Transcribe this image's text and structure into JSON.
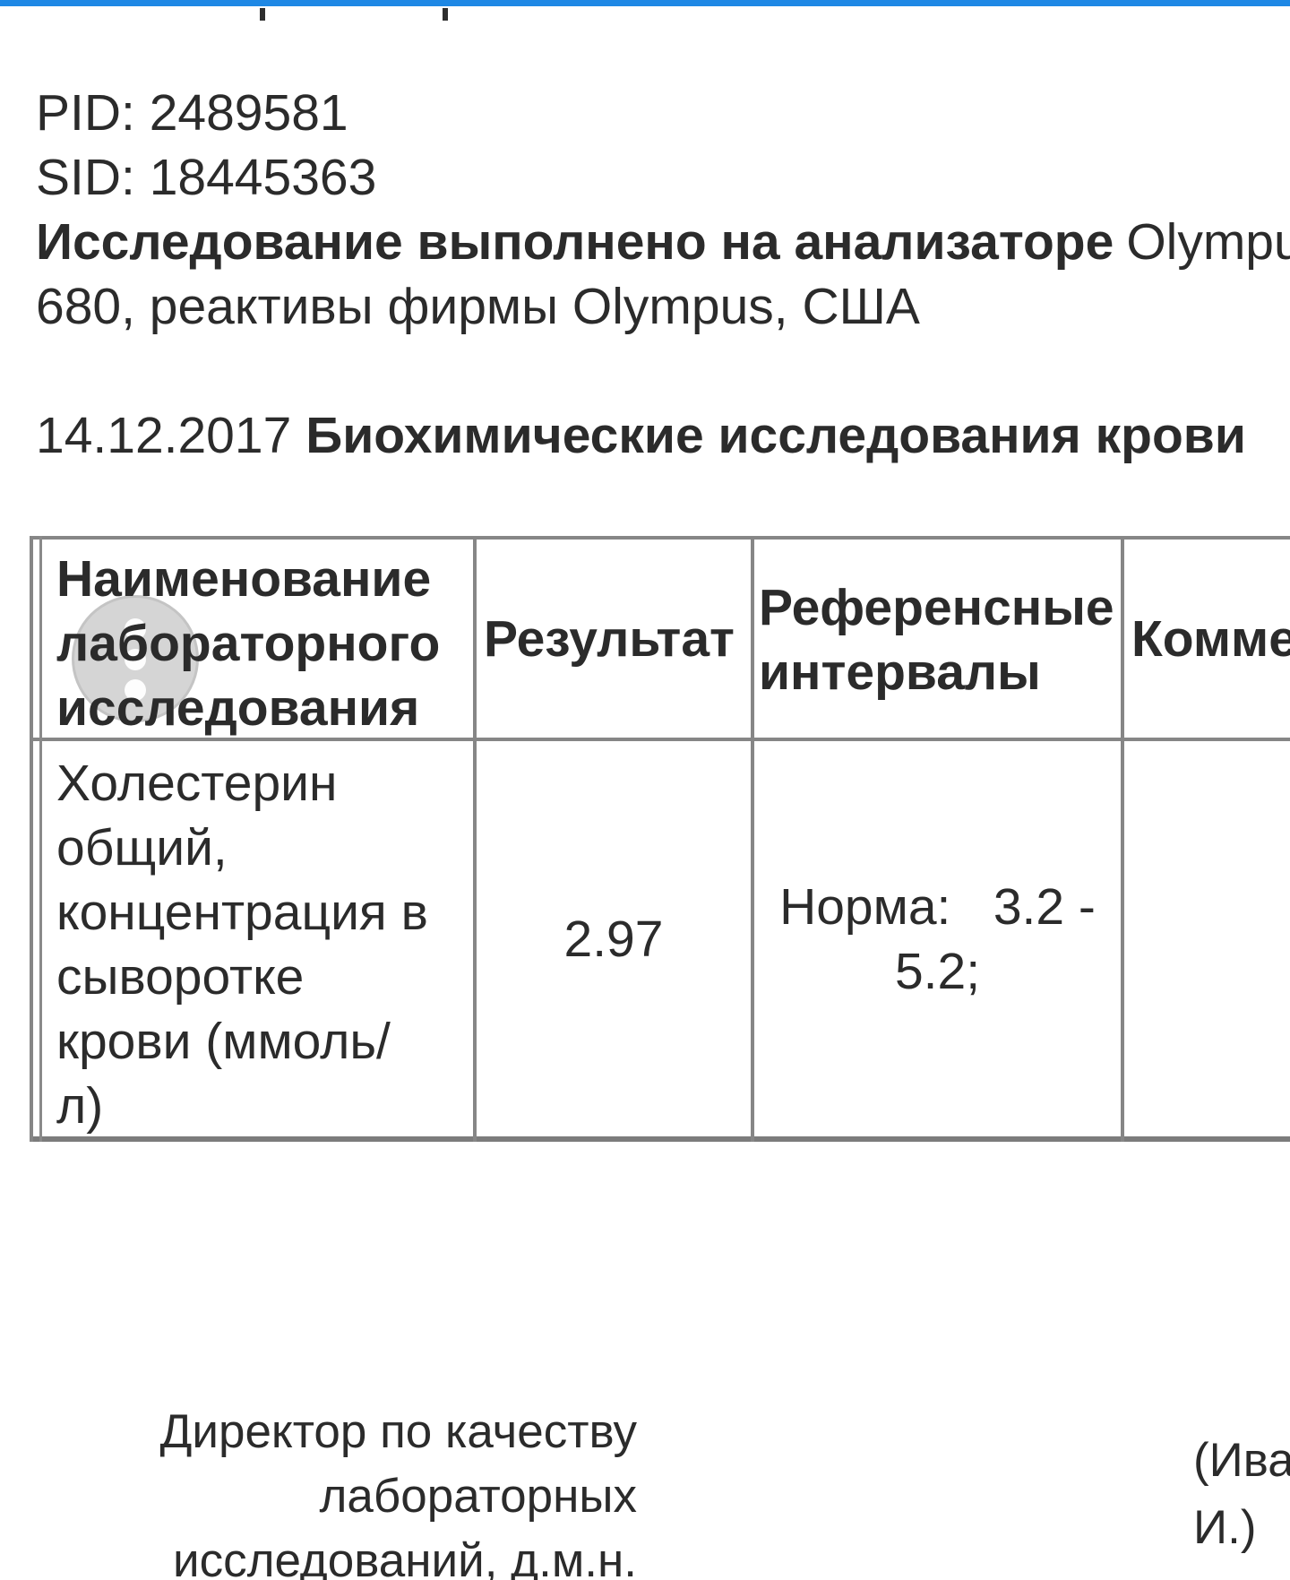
{
  "status_bar": {
    "color": "#1e88e5"
  },
  "page": {
    "pid_line": "PID: 2489581",
    "sid_line": "SID: 18445363",
    "analyzer_label": "Исследование выполнено на анализаторе",
    "analyzer_value": "Olympus",
    "analyzer_line2": "680, реактивы фирмы Olympus, США",
    "report_date": "14.12.2017",
    "report_title": "Биохимические исследования крови"
  },
  "table": {
    "header": {
      "name_lines": [
        "Наименование",
        "лабораторного",
        "исследования"
      ],
      "result": "Результат",
      "reference_lines": [
        "Референсные",
        "интервалы"
      ],
      "comment": "Комментарий"
    },
    "row": {
      "name_lines": [
        "Холестерин",
        "общий,",
        "концентрация в",
        "сыворотке",
        "крови (ммоль/",
        "л)"
      ],
      "result": "2.97",
      "reference_lines": [
        "Норма:   3.2 -",
        "5.2;"
      ],
      "comment": ""
    }
  },
  "signature": {
    "left_lines": [
      "Директор по качеству",
      "лабораторных",
      "исследований, д.м.н."
    ],
    "right_lines": [
      "(Ива",
      "И.)"
    ]
  }
}
